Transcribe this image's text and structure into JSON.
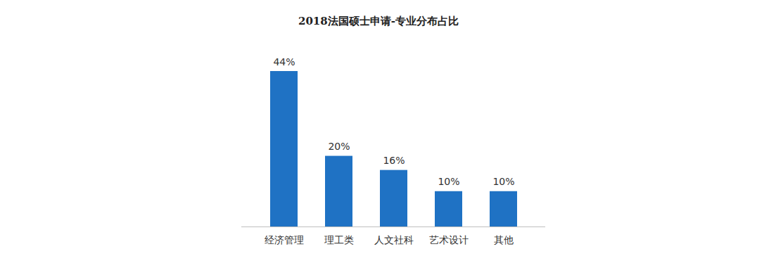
{
  "chart_data": {
    "type": "bar",
    "title": "2018法国硕士申请-专业分布占比",
    "categories": [
      "经济管理",
      "理工类",
      "人文社科",
      "艺术设计",
      "其他"
    ],
    "values": [
      44,
      20,
      16,
      10,
      10
    ],
    "value_labels": [
      "44%",
      "20%",
      "16%",
      "10%",
      "10%"
    ],
    "color": "#1f72c4",
    "ylim": [
      0,
      44
    ],
    "data_labels": true,
    "tick_labels": "x",
    "grid": false
  }
}
